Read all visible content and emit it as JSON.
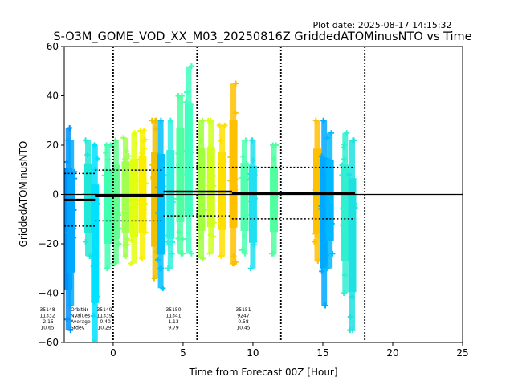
{
  "chart_data": {
    "type": "scatter",
    "plot_date": "Plot date: 2025-08-17 14:15:32",
    "title": "S-O3M_GOME_VOD_XX_M03_20250816Z GriddedATOMinusNTO vs Time",
    "xlabel": "Time from Forecast 00Z [Hour]",
    "ylabel": "GriddedATOMinusNTO",
    "xlim": [
      -3.5,
      25
    ],
    "ylim": [
      -60,
      60
    ],
    "xticks": [
      "0",
      "5",
      "10",
      "15",
      "20",
      "25"
    ],
    "yticks": [
      "60",
      "40",
      "20",
      "0",
      "−20",
      "−40",
      "−60"
    ],
    "xtick_values": [
      0,
      5,
      10,
      15,
      20,
      25
    ],
    "ytick_values": [
      60,
      40,
      20,
      0,
      -20,
      -40,
      -60
    ],
    "vlines": [
      0,
      6,
      12,
      18
    ],
    "zero_line": 0,
    "stats_header": [
      "OrbitNr",
      "NValues",
      "Average",
      "Stdev"
    ],
    "orbits": [
      {
        "orbit": "35148",
        "nvalues": "11332",
        "average": "-2.15",
        "stdev": "10.65",
        "x_start": -3.5,
        "x_end": -1.3,
        "mean": -2.15,
        "sd": 10.65
      },
      {
        "orbit": "35149",
        "nvalues": "11339",
        "average": "-0.40",
        "stdev": "10.29",
        "x_start": -1.3,
        "x_end": 3.6,
        "mean": -0.4,
        "sd": 10.29
      },
      {
        "orbit": "35150",
        "nvalues": "11341",
        "average": "1.13",
        "stdev": "9.79",
        "x_start": 3.6,
        "x_end": 8.5,
        "mean": 1.13,
        "sd": 9.79
      },
      {
        "orbit": "35151",
        "nvalues": "9247",
        "average": "0.58",
        "stdev": "10.45",
        "x_start": 8.5,
        "x_end": 17.3,
        "mean": 0.58,
        "sd": 10.45
      }
    ],
    "strips": [
      {
        "x": -3.2,
        "ymin": -55,
        "ymax": 27,
        "color": "#0090ff"
      },
      {
        "x": -3.0,
        "ymin": -45,
        "ymax": 22,
        "color": "#00a8ff"
      },
      {
        "x": -1.8,
        "ymin": -25,
        "ymax": 22,
        "color": "#20e8d8"
      },
      {
        "x": -1.3,
        "ymin": -60,
        "ymax": 20,
        "color": "#00e0ff"
      },
      {
        "x": -0.4,
        "ymin": -30,
        "ymax": 20,
        "color": "#40ffb0"
      },
      {
        "x": 0.2,
        "ymin": -28,
        "ymax": 22,
        "color": "#60ff90"
      },
      {
        "x": 0.9,
        "ymin": -25,
        "ymax": 23,
        "color": "#a0ff50"
      },
      {
        "x": 1.5,
        "ymin": -28,
        "ymax": 25,
        "color": "#e0ff10"
      },
      {
        "x": 2.1,
        "ymin": -26,
        "ymax": 26,
        "color": "#f8f000"
      },
      {
        "x": 3.0,
        "ymin": -34,
        "ymax": 30,
        "color": "#f0c000"
      },
      {
        "x": 3.4,
        "ymin": -38,
        "ymax": 30,
        "color": "#00c0ff"
      },
      {
        "x": 4.1,
        "ymin": -30,
        "ymax": 30,
        "color": "#30f0e0"
      },
      {
        "x": 4.8,
        "ymin": -24,
        "ymax": 40,
        "color": "#50ffa0"
      },
      {
        "x": 5.4,
        "ymin": -24,
        "ymax": 52,
        "color": "#40ffc0"
      },
      {
        "x": 6.3,
        "ymin": -26,
        "ymax": 30,
        "color": "#a0ff40"
      },
      {
        "x": 7.0,
        "ymin": -24,
        "ymax": 30,
        "color": "#d0ff20"
      },
      {
        "x": 7.8,
        "ymin": -25,
        "ymax": 28,
        "color": "#ffe000"
      },
      {
        "x": 8.6,
        "ymin": -28,
        "ymax": 45,
        "color": "#ffc000"
      },
      {
        "x": 9.4,
        "ymin": -24,
        "ymax": 22,
        "color": "#50ffb0"
      },
      {
        "x": 10.0,
        "ymin": -30,
        "ymax": 22,
        "color": "#20e0f0"
      },
      {
        "x": 11.5,
        "ymin": -24,
        "ymax": 20,
        "color": "#50ffa0"
      },
      {
        "x": 14.6,
        "ymin": -27,
        "ymax": 30,
        "color": "#ffc000"
      },
      {
        "x": 15.1,
        "ymin": -45,
        "ymax": 30,
        "color": "#00a8ff"
      },
      {
        "x": 15.5,
        "ymin": -30,
        "ymax": 25,
        "color": "#00b8ff"
      },
      {
        "x": 16.6,
        "ymin": -40,
        "ymax": 25,
        "color": "#30f0d0"
      },
      {
        "x": 17.1,
        "ymin": -55,
        "ymax": 22,
        "color": "#20e0e0"
      }
    ]
  }
}
